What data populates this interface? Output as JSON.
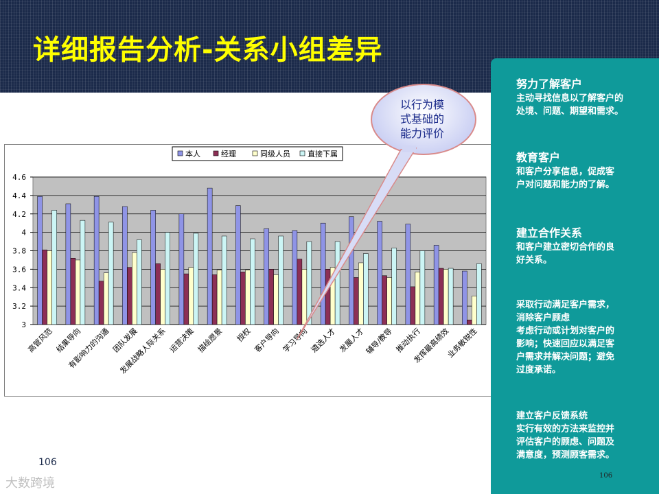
{
  "title": "详细报告分析-关系小组差异",
  "callout": [
    "以行为模",
    "式基础的",
    "能力评价"
  ],
  "page_number_left": "106",
  "page_number_right": "106",
  "watermark": "大数跨境",
  "colors": {
    "self": "#8f94e6",
    "manager": "#8c2f55",
    "peer": "#ffffcc",
    "subordinate": "#ccf5f5",
    "panel": "#0f9a9a",
    "title": "#ffff00"
  },
  "right_panel": [
    {
      "heading": "努力了解客户",
      "lines": [
        "主动寻找信息以了解客户的",
        "处境、问题、期望和需求。"
      ]
    },
    {
      "heading": "教育客户",
      "lines": [
        "和客户分享信息，促成客",
        "户对问题和能力的了解。"
      ]
    },
    {
      "heading": "建立合作关系",
      "lines": [
        "和客户建立密切合作的良",
        "好关系。"
      ]
    },
    {
      "heading": "",
      "lines": [
        "采取行动满足客户需求，",
        "消除客户顾虑",
        "考虑行动或计划对客户的",
        "影响；快速回应以满足客",
        "户需求并解决问题；避免",
        "过度承诺。"
      ]
    },
    {
      "heading": "",
      "lines": [
        "建立客户反馈系统",
        "实行有效的方法来监控并",
        "评估客户的顾虑、问题及",
        "满意度，预测顾客需求。"
      ]
    }
  ],
  "chart_data": {
    "type": "bar",
    "categories": [
      "高管风范",
      "结果导向",
      "有影响力的沟通",
      "团队发展",
      "发展战略人际关系",
      "运营决策",
      "描绘愿景",
      "授权",
      "客户导向",
      "学习导向",
      "遴选人才",
      "发展人才",
      "辅导/教导",
      "推动执行",
      "发挥最高绩效",
      "业务敏锐性"
    ],
    "series": [
      {
        "name": "本人",
        "values": [
          4.39,
          4.31,
          4.39,
          4.28,
          4.24,
          4.2,
          4.48,
          4.29,
          4.04,
          4.02,
          4.1,
          4.17,
          4.12,
          4.09,
          3.86,
          3.58
        ]
      },
      {
        "name": "经理",
        "values": [
          3.81,
          3.72,
          3.47,
          3.62,
          3.66,
          3.55,
          3.54,
          3.57,
          3.6,
          3.71,
          3.6,
          3.51,
          3.53,
          3.41,
          3.61,
          3.05
        ]
      },
      {
        "name": "同级人员",
        "values": [
          3.8,
          3.7,
          3.56,
          3.78,
          3.6,
          3.62,
          3.59,
          3.59,
          3.54,
          3.6,
          3.62,
          3.67,
          3.51,
          3.57,
          3.6,
          3.31
        ]
      },
      {
        "name": "直接下属",
        "values": [
          4.24,
          4.13,
          4.11,
          3.92,
          4.0,
          3.99,
          3.96,
          3.93,
          3.96,
          3.9,
          3.9,
          3.77,
          3.83,
          3.8,
          3.61,
          3.66
        ]
      }
    ],
    "yticks": [
      "3",
      "3.2",
      "3.4",
      "3.6",
      "3.8",
      "4",
      "4.2",
      "4.4",
      "4.6"
    ],
    "ylim": [
      3,
      4.6
    ],
    "legend_position": "top",
    "grid": true
  }
}
